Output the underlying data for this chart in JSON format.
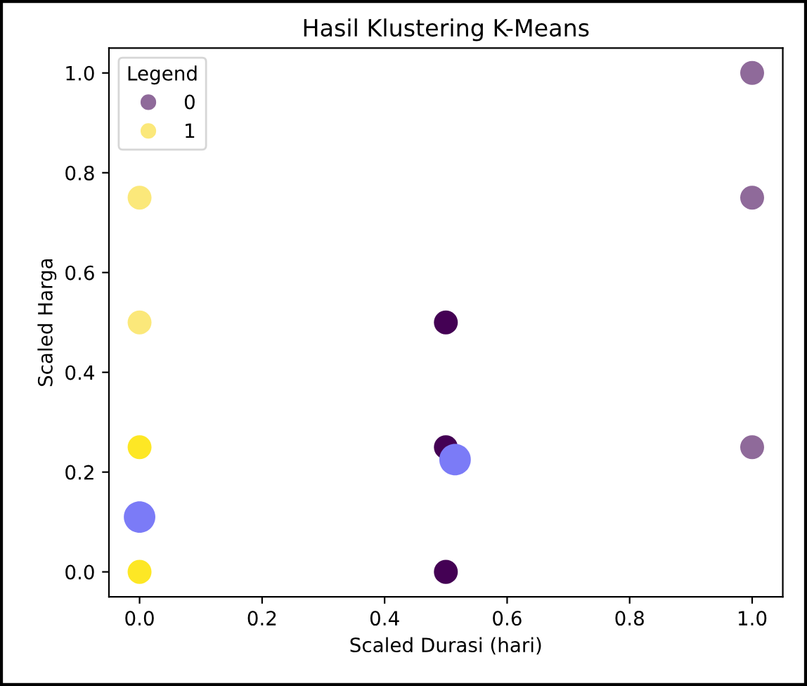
{
  "chart_data": {
    "type": "scatter",
    "title": "Hasil Klustering K-Means",
    "xlabel": "Scaled Durasi (hari)",
    "ylabel": "Scaled Harga",
    "legend_title": "Legend",
    "legend": "top left",
    "grid": false,
    "marker": "circle",
    "xlim": [
      -0.05,
      1.05
    ],
    "ylim": [
      -0.05,
      1.05
    ],
    "xticks": [
      {
        "value": 0,
        "label": "0.0"
      },
      0.2,
      0.4,
      0.6,
      0.8,
      {
        "value": 1,
        "label": "1.0"
      }
    ],
    "yticks": [
      {
        "value": 0,
        "label": "0.0"
      },
      0.2,
      0.4,
      0.6,
      0.8,
      {
        "value": 1,
        "label": "1.0"
      }
    ],
    "series": [
      {
        "name": "0",
        "color": "#8f6a9a",
        "x": [
          1,
          1,
          1,
          0.5,
          0.5,
          0.5
        ],
        "values": [
          1,
          0.75,
          0.25,
          0.5,
          0.25,
          0
        ],
        "colors": [
          "#8f6a9a",
          "#8f6a9a",
          "#8f6a9a",
          "#440154",
          "#440154",
          "#440154"
        ]
      },
      {
        "name": "1",
        "color": "#fbe87a",
        "x": [
          0,
          0,
          0,
          0
        ],
        "values": [
          0.75,
          0.5,
          0.25,
          0
        ],
        "colors": [
          "#fbe87a",
          "#fbe87a",
          "#fde725",
          "#fde725"
        ]
      },
      {
        "color": "#7b7bf7",
        "x": [
          0,
          0.515
        ],
        "values": [
          0.11,
          0.225
        ]
      }
    ]
  }
}
